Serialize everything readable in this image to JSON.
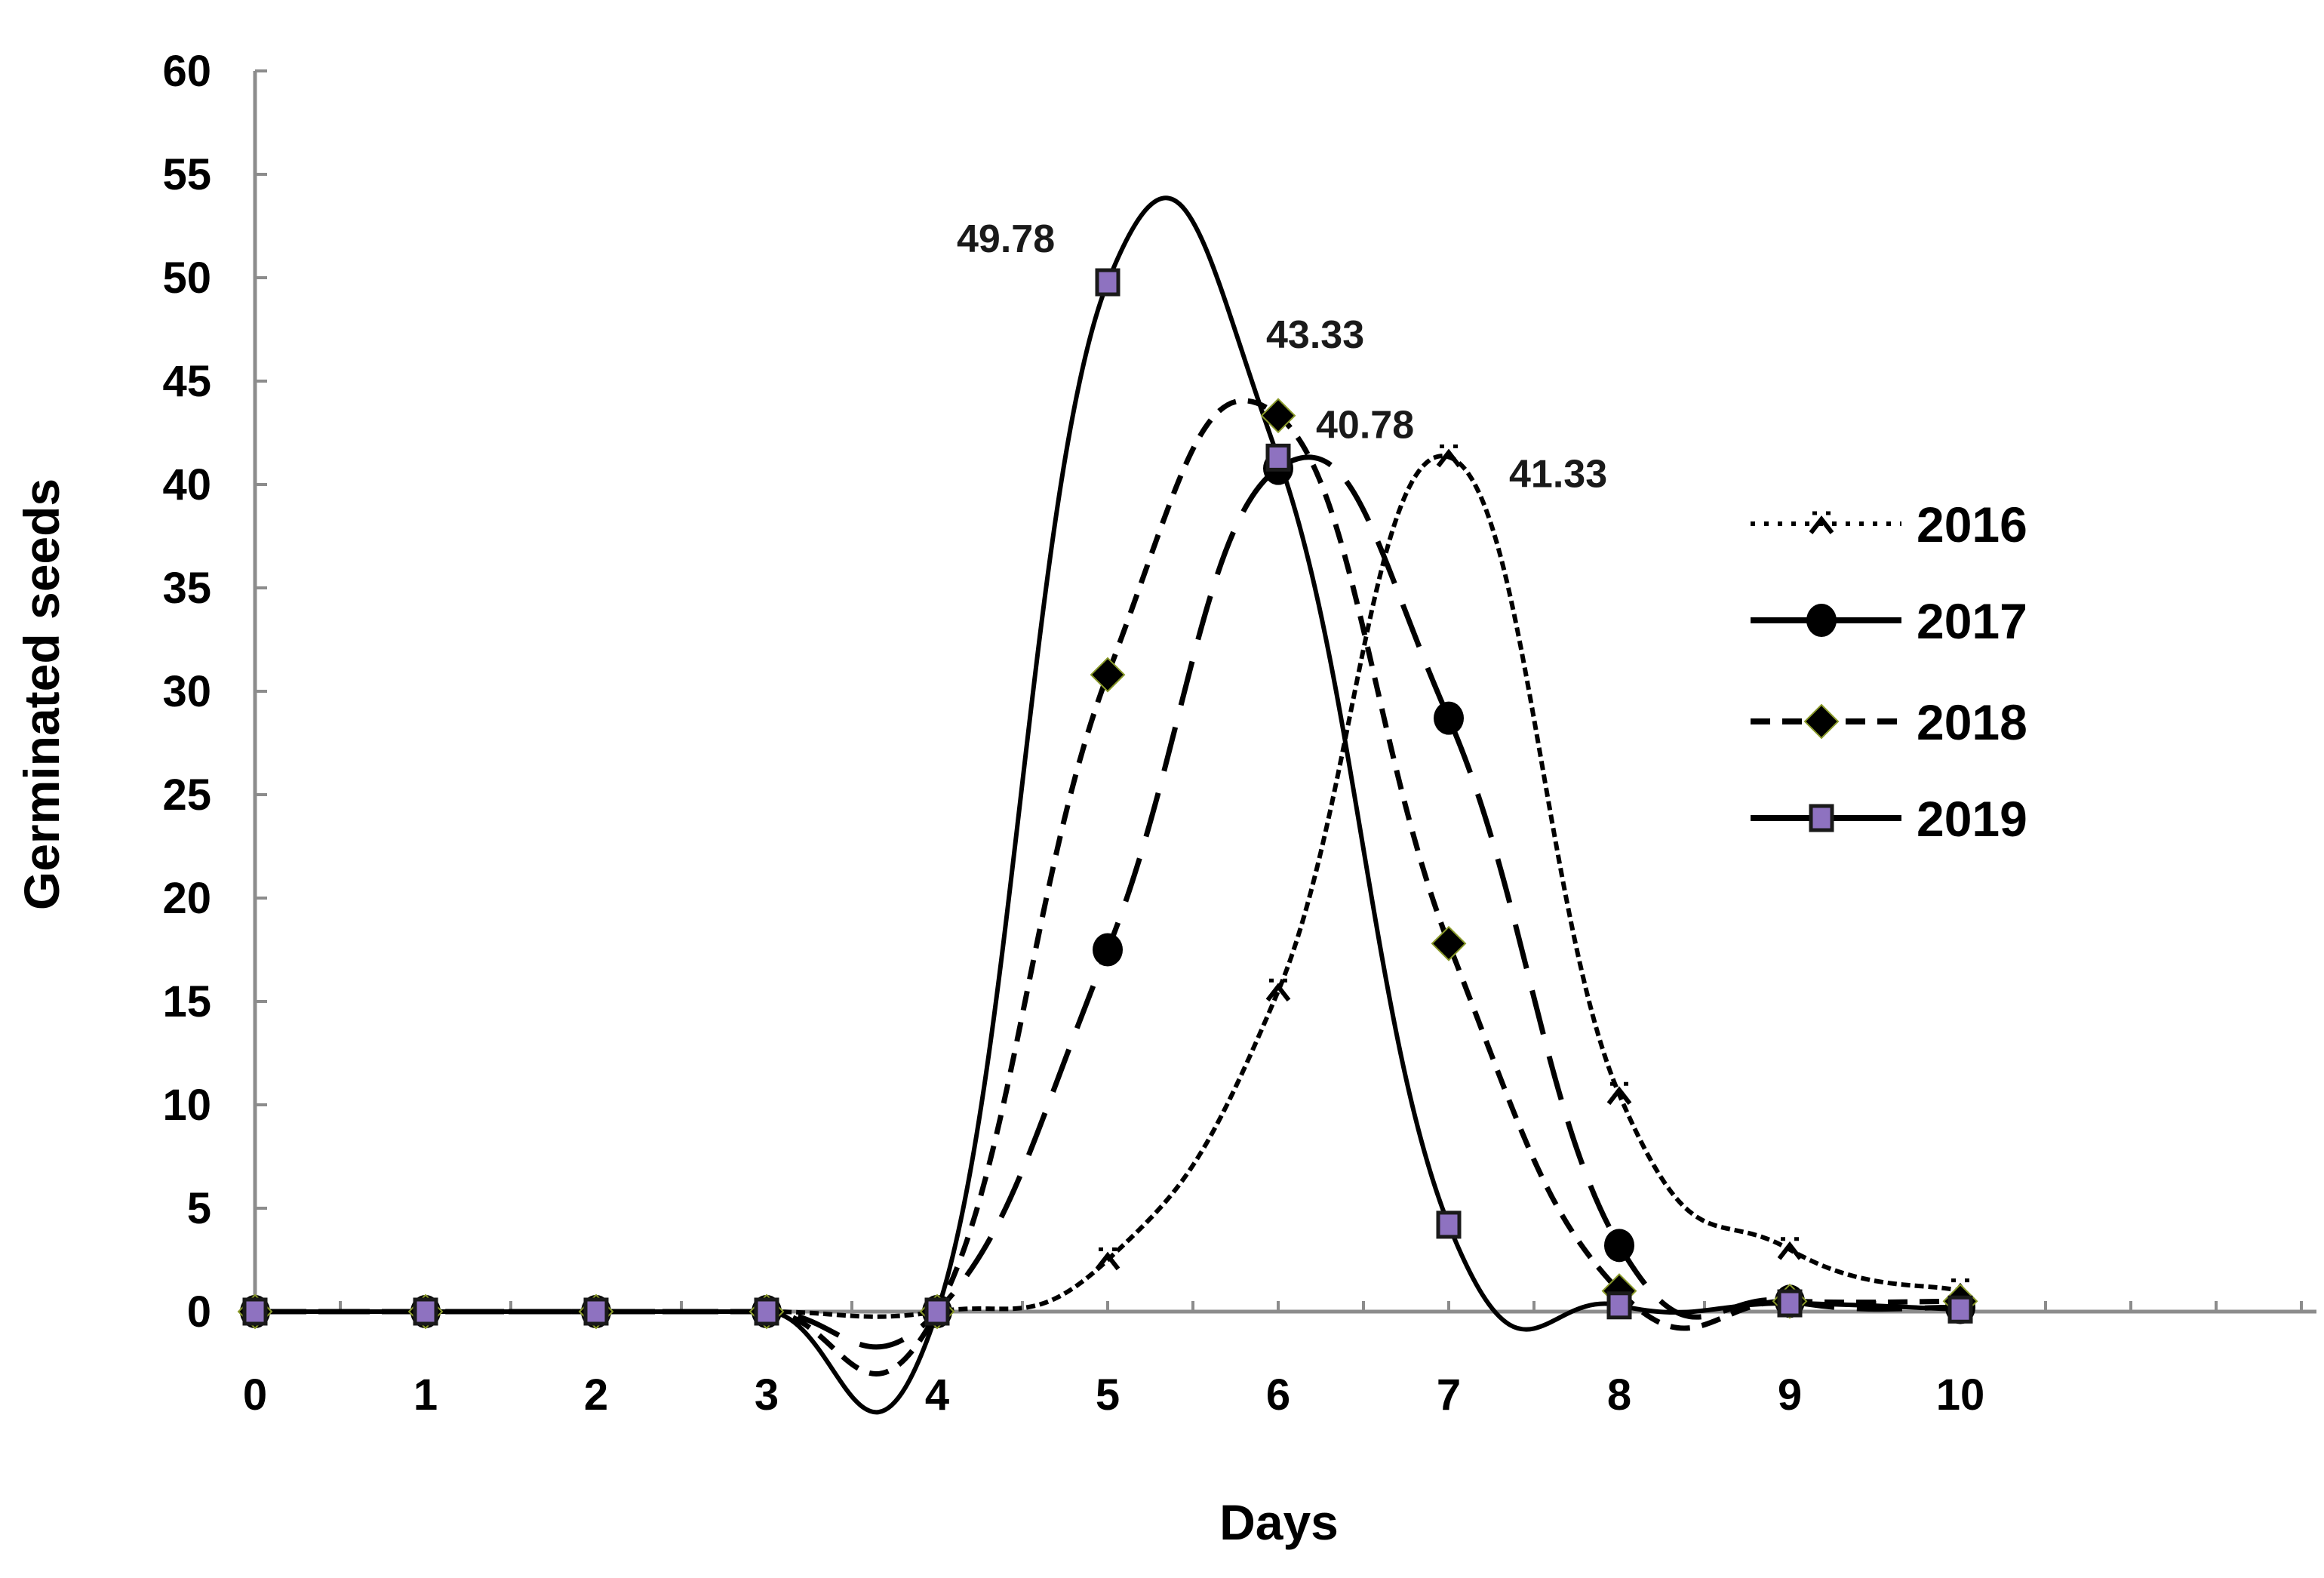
{
  "chart_data": {
    "type": "line",
    "title": "",
    "xlabel": "Days",
    "ylabel": "Germinated seeds",
    "x": [
      0,
      1,
      2,
      3,
      4,
      5,
      6,
      7,
      8,
      9,
      10
    ],
    "xlim": [
      0,
      12
    ],
    "ylim": [
      0,
      60
    ],
    "xticks": [
      "0",
      "1",
      "2",
      "3",
      "4",
      "5",
      "6",
      "7",
      "8",
      "9",
      "10"
    ],
    "yticks": [
      "0",
      "5",
      "10",
      "15",
      "20",
      "25",
      "30",
      "35",
      "40",
      "45",
      "50",
      "55",
      "60"
    ],
    "grid": false,
    "legend_position": "right",
    "series": [
      {
        "name": "2016",
        "style": "dotted",
        "marker": "x",
        "values": [
          0,
          0,
          0,
          0,
          0,
          2.5,
          15.5,
          41.33,
          10.5,
          3.0,
          1.0
        ]
      },
      {
        "name": "2017",
        "style": "long-dash",
        "marker": "circle",
        "values": [
          0,
          0,
          0,
          0,
          0,
          17.5,
          40.78,
          28.7,
          3.2,
          0.5,
          0.2
        ]
      },
      {
        "name": "2018",
        "style": "dashed",
        "marker": "diamond",
        "values": [
          0,
          0,
          0,
          0,
          0,
          30.8,
          43.33,
          17.8,
          1.0,
          0.5,
          0.5
        ]
      },
      {
        "name": "2019",
        "style": "solid",
        "marker": "square",
        "values": [
          0,
          0,
          0,
          0,
          0,
          49.78,
          41.3,
          4.2,
          0.3,
          0.4,
          0.1
        ]
      }
    ],
    "annotations": [
      {
        "text": "49.78",
        "x": 5,
        "y": 49.78,
        "series": "2019"
      },
      {
        "text": "43.33",
        "x": 6,
        "y": 43.33,
        "series": "2018"
      },
      {
        "text": "40.78",
        "x": 6,
        "y": 40.78,
        "series": "2017"
      },
      {
        "text": "41.33",
        "x": 7,
        "y": 41.33,
        "series": "2016"
      }
    ]
  },
  "colors": {
    "line": "#000000",
    "axis": "#8c8c8c",
    "square_marker_fill": "#8e72c0",
    "diamond_marker_edge": "#8a9a2a"
  },
  "legend": {
    "items": [
      {
        "label": "2016"
      },
      {
        "label": "2017"
      },
      {
        "label": "2018"
      },
      {
        "label": "2019"
      }
    ]
  },
  "axes": {
    "xlabel": "Days",
    "ylabel": "Germinated seeds"
  }
}
